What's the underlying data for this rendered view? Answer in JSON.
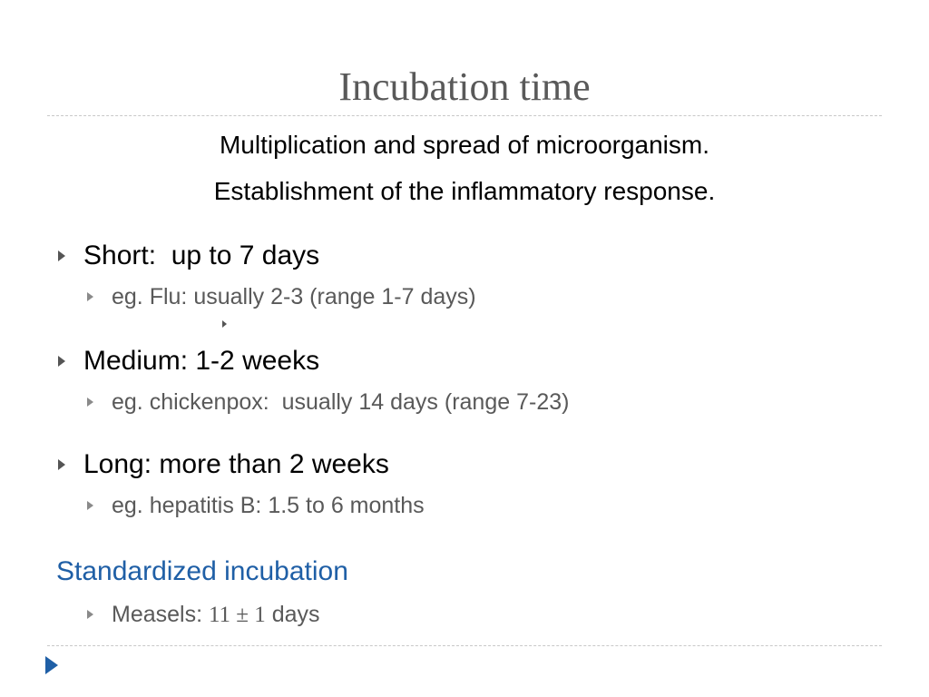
{
  "slide": {
    "title": "Incubation time",
    "subtitle_lines": [
      "Multiplication and spread of microorganism.",
      "Establishment of the inflammatory response."
    ],
    "bullets": [
      {
        "text": "Short:  up to 7 days",
        "sub": "eg. Flu: usually 2-3 (range 1-7 days)"
      },
      {
        "text": "Medium: 1-2 weeks",
        "sub": "eg. chickenpox:  usually 14 days (range 7-23)"
      },
      {
        "text": "Long: more than 2 weeks",
        "sub": "eg. hepatitis B: 1.5 to 6 months"
      }
    ],
    "standardized": {
      "heading": "Standardized incubation",
      "item_prefix": "Measels: ",
      "item_value": "11 ± 1",
      "item_suffix": " days"
    }
  },
  "colors": {
    "title": "#595959",
    "accent": "#1f5fa6",
    "subtext": "#595959"
  },
  "icons": {
    "bullet": "triangle-right-icon",
    "nav": "nav-play-icon"
  }
}
